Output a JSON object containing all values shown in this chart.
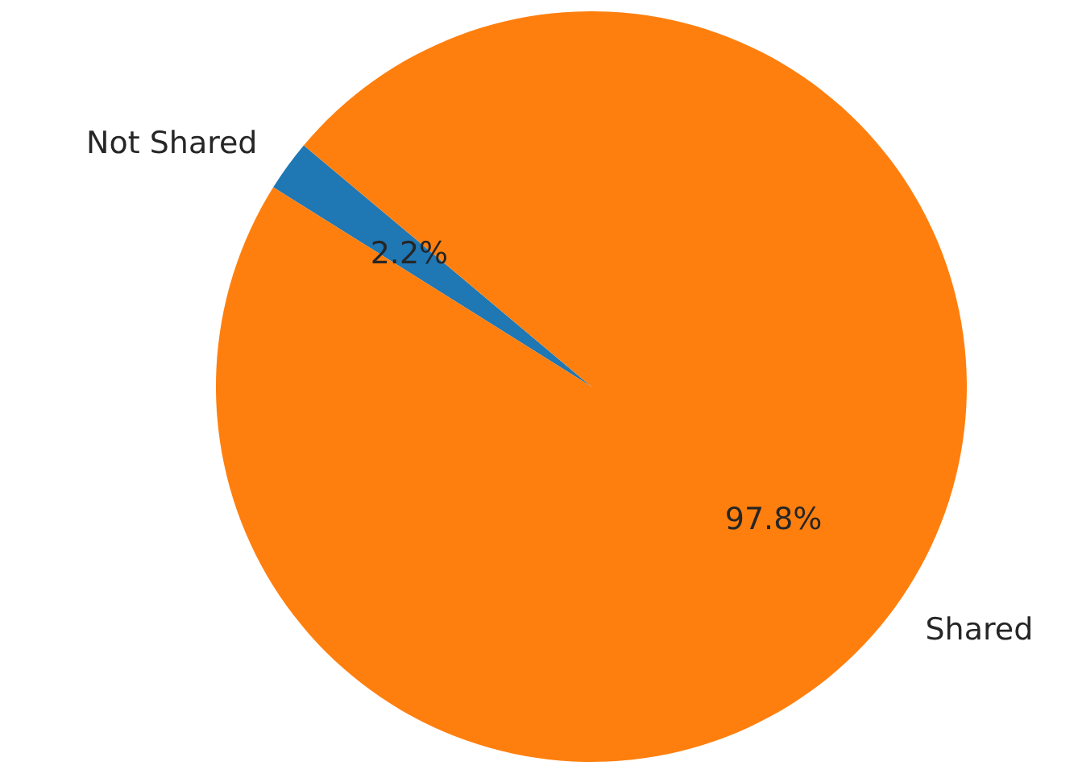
{
  "chart_data": {
    "type": "pie",
    "categories": [
      "Not Shared",
      "Shared"
    ],
    "values": [
      2.2,
      97.8
    ],
    "colors": [
      "#1f77b4",
      "#ff7f0e"
    ],
    "value_labels": [
      "2.2%",
      "97.8%"
    ]
  }
}
